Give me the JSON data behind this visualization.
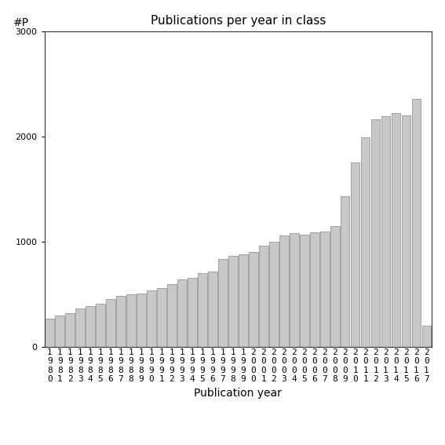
{
  "title": "Publications per year in class",
  "xlabel": "Publication year",
  "ylabel": "#P",
  "ylim": [
    0,
    3000
  ],
  "yticks": [
    0,
    1000,
    2000,
    3000
  ],
  "bar_color": "#c8c8c8",
  "bar_edgecolor": "#888888",
  "years": [
    1980,
    1981,
    1982,
    1983,
    1984,
    1985,
    1986,
    1987,
    1988,
    1989,
    1990,
    1991,
    1992,
    1993,
    1994,
    1995,
    1996,
    1997,
    1998,
    1999,
    2000,
    2001,
    2002,
    2003,
    2004,
    2005,
    2006,
    2007,
    2008,
    2009,
    2010,
    2011,
    2012,
    2013,
    2014,
    2015,
    2016,
    2017
  ],
  "values": [
    270,
    300,
    320,
    370,
    390,
    410,
    460,
    490,
    500,
    510,
    540,
    560,
    600,
    640,
    660,
    700,
    720,
    840,
    870,
    880,
    900,
    960,
    1000,
    1060,
    1080,
    1070,
    1090,
    1100,
    1150,
    1430,
    1750,
    1990,
    2160,
    2190,
    2220,
    2200,
    2360,
    200
  ],
  "background_color": "#ffffff",
  "title_fontsize": 11,
  "axis_fontsize": 10,
  "tick_fontsize": 8
}
